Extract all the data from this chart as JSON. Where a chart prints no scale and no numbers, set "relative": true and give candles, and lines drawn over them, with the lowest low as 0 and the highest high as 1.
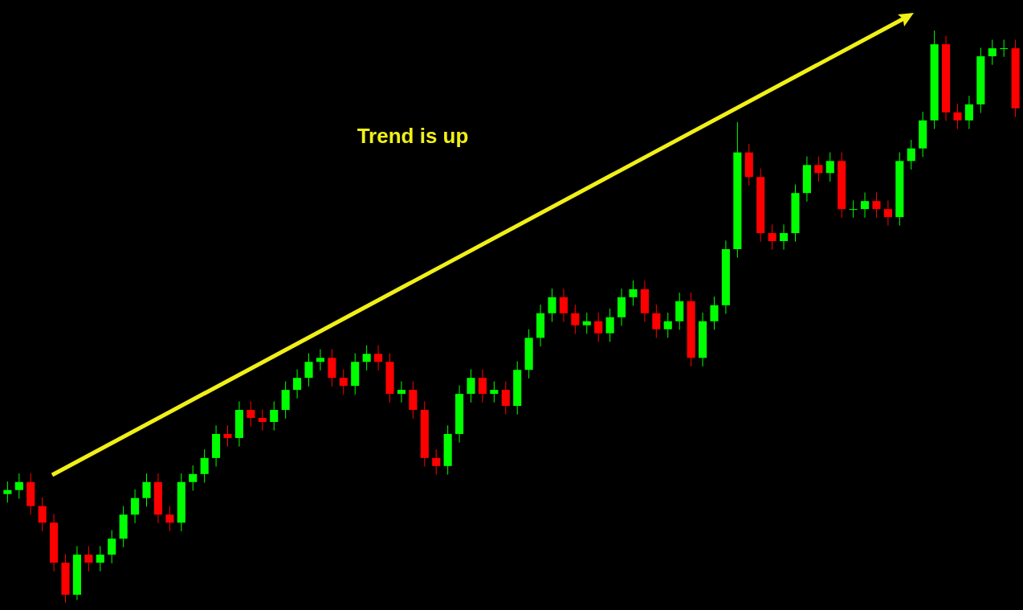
{
  "chart_data": {
    "type": "candlestick",
    "relative": true,
    "categories": [
      null,
      null,
      null,
      null,
      null,
      null,
      null,
      null,
      null,
      null,
      null,
      null,
      null,
      null,
      null,
      null,
      null,
      null,
      null,
      null,
      null,
      null,
      null,
      null,
      null,
      null,
      null,
      null,
      null,
      null,
      null,
      null,
      null,
      null,
      null,
      null,
      null,
      null,
      null,
      null,
      null,
      null,
      null,
      null,
      null,
      null,
      null,
      null,
      null,
      null,
      null,
      null,
      null,
      null,
      null,
      null,
      null,
      null,
      null,
      null,
      null,
      null,
      null,
      null,
      null,
      null,
      null,
      null,
      null,
      null,
      null,
      null,
      null,
      null,
      null,
      null,
      null,
      null,
      null,
      null,
      null,
      null,
      null,
      null,
      null,
      null,
      null,
      null
    ],
    "ohlc": [
      [
        0.19,
        0.212,
        0.175,
        0.197
      ],
      [
        0.197,
        0.226,
        0.182,
        0.211
      ],
      [
        0.211,
        0.226,
        0.154,
        0.169
      ],
      [
        0.169,
        0.184,
        0.125,
        0.14
      ],
      [
        0.14,
        0.155,
        0.055,
        0.07
      ],
      [
        0.07,
        0.085,
        0,
        0.014
      ],
      [
        0.014,
        0.099,
        0.005,
        0.084
      ],
      [
        0.084,
        0.099,
        0.055,
        0.07
      ],
      [
        0.07,
        0.099,
        0.055,
        0.084
      ],
      [
        0.084,
        0.127,
        0.069,
        0.112
      ],
      [
        0.112,
        0.169,
        0.097,
        0.154
      ],
      [
        0.154,
        0.198,
        0.139,
        0.183
      ],
      [
        0.183,
        0.226,
        0.168,
        0.211
      ],
      [
        0.211,
        0.226,
        0.139,
        0.154
      ],
      [
        0.154,
        0.169,
        0.125,
        0.14
      ],
      [
        0.14,
        0.226,
        0.125,
        0.211
      ],
      [
        0.211,
        0.24,
        0.196,
        0.225
      ],
      [
        0.225,
        0.268,
        0.21,
        0.253
      ],
      [
        0.253,
        0.31,
        0.238,
        0.295
      ],
      [
        0.295,
        0.31,
        0.273,
        0.288
      ],
      [
        0.288,
        0.352,
        0.273,
        0.337
      ],
      [
        0.337,
        0.352,
        0.308,
        0.323
      ],
      [
        0.323,
        0.338,
        0.301,
        0.316
      ],
      [
        0.316,
        0.352,
        0.301,
        0.337
      ],
      [
        0.337,
        0.387,
        0.322,
        0.372
      ],
      [
        0.372,
        0.408,
        0.357,
        0.393
      ],
      [
        0.393,
        0.436,
        0.378,
        0.421
      ],
      [
        0.421,
        0.443,
        0.406,
        0.428
      ],
      [
        0.428,
        0.443,
        0.378,
        0.393
      ],
      [
        0.393,
        0.408,
        0.364,
        0.379
      ],
      [
        0.379,
        0.436,
        0.364,
        0.421
      ],
      [
        0.421,
        0.45,
        0.406,
        0.435
      ],
      [
        0.435,
        0.45,
        0.406,
        0.421
      ],
      [
        0.421,
        0.436,
        0.35,
        0.365
      ],
      [
        0.365,
        0.387,
        0.35,
        0.372
      ],
      [
        0.372,
        0.387,
        0.322,
        0.337
      ],
      [
        0.337,
        0.352,
        0.238,
        0.253
      ],
      [
        0.253,
        0.268,
        0.224,
        0.239
      ],
      [
        0.239,
        0.31,
        0.224,
        0.295
      ],
      [
        0.295,
        0.38,
        0.28,
        0.365
      ],
      [
        0.365,
        0.408,
        0.35,
        0.393
      ],
      [
        0.393,
        0.408,
        0.35,
        0.365
      ],
      [
        0.365,
        0.387,
        0.35,
        0.372
      ],
      [
        0.372,
        0.387,
        0.329,
        0.344
      ],
      [
        0.344,
        0.422,
        0.329,
        0.407
      ],
      [
        0.407,
        0.478,
        0.392,
        0.463
      ],
      [
        0.463,
        0.521,
        0.448,
        0.506
      ],
      [
        0.506,
        0.549,
        0.491,
        0.534
      ],
      [
        0.534,
        0.549,
        0.491,
        0.506
      ],
      [
        0.506,
        0.521,
        0.47,
        0.485
      ],
      [
        0.485,
        0.507,
        0.47,
        0.492
      ],
      [
        0.492,
        0.507,
        0.456,
        0.471
      ],
      [
        0.471,
        0.514,
        0.456,
        0.499
      ],
      [
        0.499,
        0.549,
        0.484,
        0.534
      ],
      [
        0.534,
        0.563,
        0.519,
        0.548
      ],
      [
        0.548,
        0.563,
        0.491,
        0.506
      ],
      [
        0.506,
        0.521,
        0.463,
        0.478
      ],
      [
        0.478,
        0.507,
        0.463,
        0.492
      ],
      [
        0.492,
        0.542,
        0.477,
        0.527
      ],
      [
        0.527,
        0.542,
        0.413,
        0.428
      ],
      [
        0.428,
        0.507,
        0.413,
        0.492
      ],
      [
        0.492,
        0.535,
        0.477,
        0.52
      ],
      [
        0.52,
        0.633,
        0.505,
        0.618
      ],
      [
        0.618,
        0.84,
        0.603,
        0.787
      ],
      [
        0.787,
        0.802,
        0.729,
        0.744
      ],
      [
        0.744,
        0.759,
        0.631,
        0.646
      ],
      [
        0.646,
        0.661,
        0.617,
        0.632
      ],
      [
        0.632,
        0.661,
        0.617,
        0.646
      ],
      [
        0.646,
        0.731,
        0.631,
        0.716
      ],
      [
        0.716,
        0.78,
        0.701,
        0.765
      ],
      [
        0.765,
        0.78,
        0.736,
        0.751
      ],
      [
        0.751,
        0.787,
        0.736,
        0.772
      ],
      [
        0.772,
        0.787,
        0.673,
        0.688
      ],
      [
        0.688,
        0.703,
        0.673,
        0.688
      ],
      [
        0.688,
        0.717,
        0.673,
        0.702
      ],
      [
        0.702,
        0.717,
        0.673,
        0.688
      ],
      [
        0.688,
        0.703,
        0.659,
        0.674
      ],
      [
        0.674,
        0.787,
        0.659,
        0.772
      ],
      [
        0.772,
        0.809,
        0.757,
        0.794
      ],
      [
        0.794,
        0.858,
        0.779,
        0.843
      ],
      [
        0.843,
        1,
        0.828,
        0.976
      ],
      [
        0.976,
        0.991,
        0.842,
        0.857
      ],
      [
        0.857,
        0.872,
        0.828,
        0.843
      ],
      [
        0.843,
        0.886,
        0.828,
        0.871
      ],
      [
        0.871,
        0.97,
        0.856,
        0.955
      ],
      [
        0.955,
        0.984,
        0.94,
        0.969
      ],
      [
        0.969,
        0.984,
        0.954,
        0.969
      ],
      [
        0.969,
        0.984,
        0.849,
        0.864
      ]
    ],
    "colors": [
      "#00ff00",
      "#00ff00",
      "#ff0000",
      "#ff0000",
      "#ff0000",
      "#ff0000",
      "#00ff00",
      "#ff0000",
      "#00ff00",
      "#00ff00",
      "#00ff00",
      "#00ff00",
      "#00ff00",
      "#ff0000",
      "#ff0000",
      "#00ff00",
      "#00ff00",
      "#00ff00",
      "#00ff00",
      "#ff0000",
      "#00ff00",
      "#ff0000",
      "#ff0000",
      "#00ff00",
      "#00ff00",
      "#00ff00",
      "#00ff00",
      "#00ff00",
      "#ff0000",
      "#ff0000",
      "#00ff00",
      "#00ff00",
      "#ff0000",
      "#ff0000",
      "#00ff00",
      "#ff0000",
      "#ff0000",
      "#ff0000",
      "#00ff00",
      "#00ff00",
      "#00ff00",
      "#ff0000",
      "#00ff00",
      "#ff0000",
      "#00ff00",
      "#00ff00",
      "#00ff00",
      "#00ff00",
      "#ff0000",
      "#ff0000",
      "#00ff00",
      "#ff0000",
      "#00ff00",
      "#00ff00",
      "#00ff00",
      "#ff0000",
      "#ff0000",
      "#00ff00",
      "#00ff00",
      "#ff0000",
      "#00ff00",
      "#00ff00",
      "#00ff00",
      "#00ff00",
      "#ff0000",
      "#ff0000",
      "#ff0000",
      "#00ff00",
      "#00ff00",
      "#00ff00",
      "#ff0000",
      "#00ff00",
      "#ff0000",
      "#00ff00",
      "#00ff00",
      "#ff0000",
      "#ff0000",
      "#00ff00",
      "#00ff00",
      "#00ff00",
      "#00ff00",
      "#ff0000",
      "#ff0000",
      "#00ff00",
      "#00ff00",
      "#00ff00",
      "#00ff00",
      "#ff0000"
    ],
    "annotations": [
      "Trend is up"
    ]
  }
}
